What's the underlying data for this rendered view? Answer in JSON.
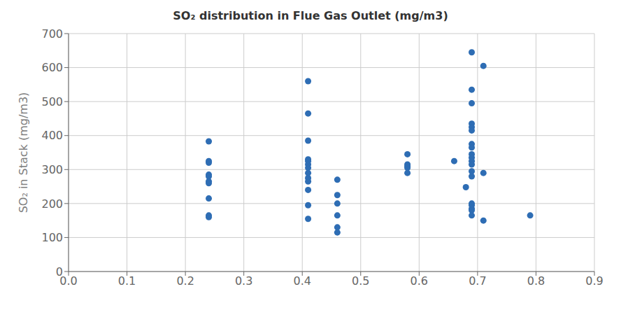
{
  "chart_data": {
    "type": "scatter",
    "title": "SO₂  distribution in Flue Gas Outlet (mg/m3)",
    "ylabel": "SO₂ in Stack (mg/m3)",
    "xlim": [
      0,
      0.9
    ],
    "ylim": [
      0,
      700
    ],
    "xticks": [
      {
        "value": 0,
        "label": "0.0"
      },
      0.1,
      0.2,
      0.3,
      0.4,
      0.5,
      0.6,
      0.7,
      0.8,
      0.9
    ],
    "yticks": [
      0,
      100,
      200,
      300,
      400,
      500,
      600,
      700
    ],
    "color": "#2E6DB4",
    "grid": true,
    "x": [
      0.24,
      0.24,
      0.24,
      0.24,
      0.24,
      0.24,
      0.24,
      0.24,
      0.24,
      0.24,
      0.41,
      0.41,
      0.41,
      0.41,
      0.41,
      0.41,
      0.41,
      0.41,
      0.41,
      0.41,
      0.41,
      0.41,
      0.41,
      0.46,
      0.46,
      0.46,
      0.46,
      0.46,
      0.46,
      0.58,
      0.58,
      0.58,
      0.58,
      0.58,
      0.66,
      0.68,
      0.69,
      0.69,
      0.69,
      0.69,
      0.69,
      0.69,
      0.69,
      0.69,
      0.69,
      0.69,
      0.69,
      0.69,
      0.69,
      0.69,
      0.69,
      0.69,
      0.69,
      0.69,
      0.69,
      0.71,
      0.71,
      0.71,
      0.79
    ],
    "values": [
      383,
      325,
      320,
      285,
      280,
      265,
      260,
      215,
      165,
      160,
      560,
      465,
      385,
      330,
      325,
      315,
      305,
      290,
      275,
      265,
      240,
      195,
      155,
      270,
      225,
      200,
      165,
      130,
      115,
      345,
      315,
      310,
      305,
      290,
      325,
      248,
      645,
      535,
      495,
      435,
      425,
      415,
      375,
      365,
      345,
      335,
      325,
      315,
      295,
      280,
      200,
      195,
      185,
      180,
      165,
      605,
      290,
      150,
      165
    ]
  }
}
